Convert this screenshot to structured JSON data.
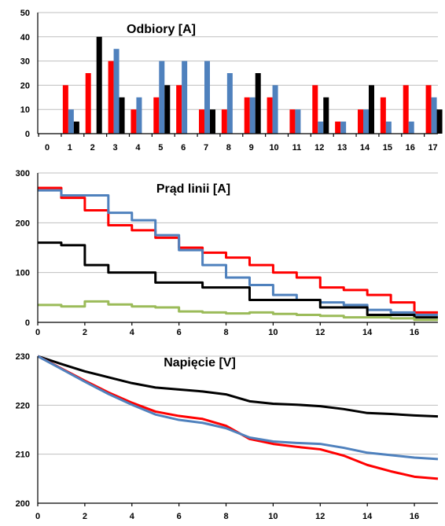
{
  "chart_data": [
    {
      "type": "bar",
      "title": "Odbiory [A]",
      "xlabel": "",
      "ylabel": "",
      "ylim": [
        0,
        50
      ],
      "yticks": [
        0,
        10,
        20,
        30,
        40,
        50
      ],
      "categories": [
        "0",
        "1",
        "2",
        "3",
        "4",
        "5",
        "6",
        "7",
        "8",
        "9",
        "10",
        "11",
        "12",
        "13",
        "14",
        "15",
        "16",
        "17"
      ],
      "grid": true,
      "legend": "none",
      "series": [
        {
          "color": "#ff0000",
          "values": [
            null,
            20,
            25,
            30,
            10,
            15,
            20,
            10,
            10,
            15,
            15,
            10,
            20,
            5,
            10,
            15,
            20,
            20
          ]
        },
        {
          "color": "#4f81bd",
          "values": [
            null,
            10,
            null,
            35,
            15,
            30,
            30,
            30,
            25,
            15,
            20,
            10,
            5,
            5,
            10,
            5,
            5,
            15
          ]
        },
        {
          "color": "#000000",
          "values": [
            null,
            5,
            40,
            15,
            null,
            20,
            null,
            10,
            null,
            25,
            null,
            null,
            15,
            null,
            20,
            null,
            null,
            10
          ]
        }
      ]
    },
    {
      "type": "line",
      "title": "Prąd linii [A]",
      "xlabel": "",
      "ylabel": "",
      "xlim": [
        0,
        17
      ],
      "ylim": [
        0,
        300
      ],
      "xticks": [
        0,
        2,
        4,
        6,
        8,
        10,
        12,
        14,
        16
      ],
      "yticks": [
        0,
        100,
        200,
        300
      ],
      "grid": true,
      "legend": "none",
      "step": true,
      "series": [
        {
          "color": "#ff0000",
          "values": [
            270,
            250,
            225,
            195,
            185,
            170,
            150,
            140,
            130,
            115,
            100,
            90,
            70,
            65,
            55,
            40,
            20,
            20
          ]
        },
        {
          "color": "#4f81bd",
          "values": [
            265,
            255,
            255,
            220,
            205,
            175,
            145,
            115,
            90,
            75,
            55,
            45,
            40,
            35,
            25,
            20,
            15,
            15
          ]
        },
        {
          "color": "#000000",
          "values": [
            160,
            155,
            115,
            100,
            100,
            80,
            80,
            70,
            70,
            45,
            45,
            45,
            30,
            30,
            15,
            15,
            10,
            10
          ]
        },
        {
          "color": "#9bbb59",
          "values": [
            35,
            32,
            42,
            36,
            32,
            30,
            22,
            20,
            18,
            20,
            17,
            15,
            13,
            10,
            10,
            8,
            5,
            5
          ]
        }
      ]
    },
    {
      "type": "line",
      "title": "Napięcie [V]",
      "xlabel": "",
      "ylabel": "",
      "xlim": [
        0,
        17
      ],
      "ylim": [
        200,
        230
      ],
      "xticks": [
        0,
        2,
        4,
        6,
        8,
        10,
        12,
        14,
        16
      ],
      "yticks": [
        200,
        210,
        220,
        230
      ],
      "grid": true,
      "legend": "none",
      "series": [
        {
          "color": "#000000",
          "values": [
            230,
            228.4,
            226.9,
            225.7,
            224.5,
            223.6,
            223.2,
            222.8,
            222.2,
            220.8,
            220.3,
            220.1,
            219.8,
            219.2,
            218.4,
            218.2,
            217.9,
            217.7
          ]
        },
        {
          "color": "#ff0000",
          "values": [
            230,
            227.5,
            225,
            222.6,
            220.5,
            218.7,
            217.8,
            217.2,
            215.8,
            213.1,
            212.1,
            211.5,
            211,
            209.7,
            207.8,
            206.5,
            205.4,
            205
          ]
        },
        {
          "color": "#4f81bd",
          "values": [
            230,
            227.4,
            224.8,
            222.3,
            220.1,
            218.1,
            217,
            216.4,
            215.3,
            213.4,
            212.6,
            212.3,
            212.1,
            211.3,
            210.3,
            209.8,
            209.3,
            209
          ]
        }
      ]
    }
  ]
}
